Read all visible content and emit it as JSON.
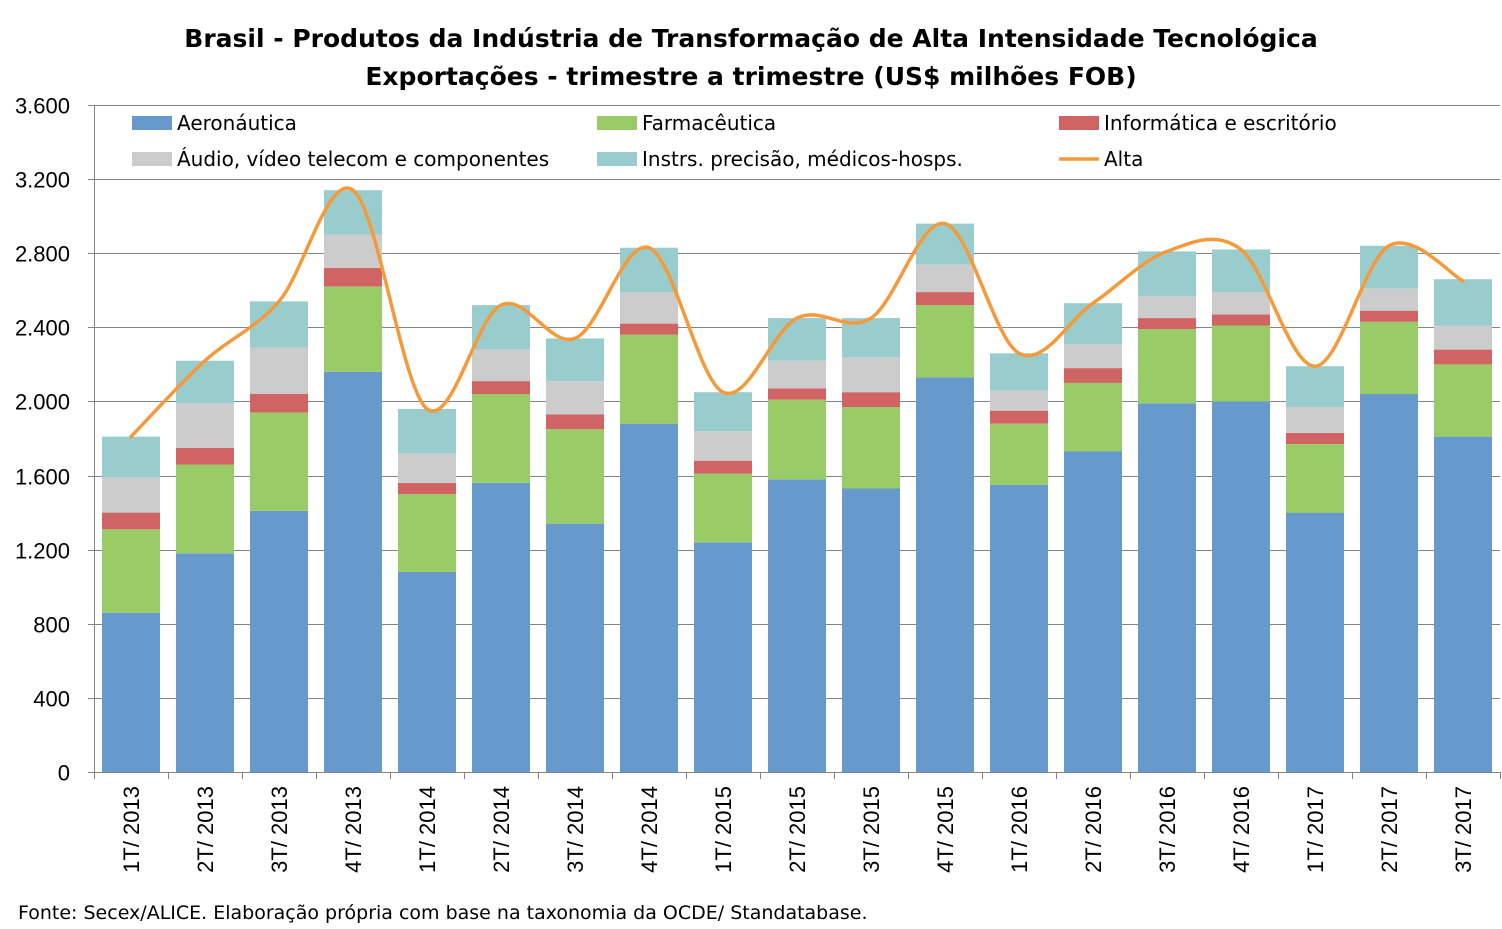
{
  "chart_data": {
    "type": "bar",
    "stacked": true,
    "title": "Brasil - Produtos da Indústria de Transformação de Alta Intensidade Tecnológica",
    "subtitle": "Exportações - trimestre a trimestre (US$ milhões FOB)",
    "ylim": [
      0,
      3600
    ],
    "yticks": [
      0,
      400,
      800,
      1200,
      1600,
      2000,
      2400,
      2800,
      3200,
      3600
    ],
    "ytick_labels": [
      "0",
      "400",
      "800",
      "1.200",
      "1.600",
      "2.000",
      "2.400",
      "2.800",
      "3.200",
      "3.600"
    ],
    "grid": true,
    "legend_position": "top",
    "categories": [
      "1T/ 2013",
      "2T/ 2013",
      "3T/ 2013",
      "4T/ 2013",
      "1T/ 2014",
      "2T/ 2014",
      "3T/ 2014",
      "4T/ 2014",
      "1T/ 2015",
      "2T/ 2015",
      "3T/ 2015",
      "4T/ 2015",
      "1T/ 2016",
      "2T/ 2016",
      "3T/ 2016",
      "4T/ 2016",
      "1T/ 2017",
      "2T/ 2017",
      "3T/ 2017"
    ],
    "series": [
      {
        "name": "Aeronáutica",
        "color": "#6699CC",
        "values": [
          860,
          1180,
          1410,
          2160,
          1080,
          1560,
          1340,
          1880,
          1240,
          1580,
          1530,
          2130,
          1550,
          1730,
          1990,
          2000,
          1400,
          2040,
          1810
        ]
      },
      {
        "name": "Farmacêutica",
        "color": "#99CC66",
        "values": [
          450,
          480,
          530,
          460,
          420,
          480,
          510,
          480,
          370,
          430,
          440,
          390,
          330,
          370,
          400,
          410,
          370,
          390,
          390
        ]
      },
      {
        "name": "Informática e escritório",
        "color": "#D06464",
        "values": [
          90,
          90,
          100,
          100,
          60,
          70,
          80,
          60,
          70,
          60,
          80,
          70,
          70,
          80,
          60,
          60,
          60,
          60,
          80
        ]
      },
      {
        "name": "Áudio, vídeo telecom e componentes",
        "color": "#CCCCCC",
        "values": [
          190,
          240,
          250,
          180,
          160,
          170,
          180,
          170,
          160,
          150,
          190,
          150,
          110,
          130,
          120,
          120,
          140,
          120,
          130
        ]
      },
      {
        "name": "Instrs. precisão, médicos-hosps.",
        "color": "#99CCCC",
        "values": [
          220,
          230,
          250,
          240,
          240,
          240,
          230,
          240,
          210,
          230,
          210,
          220,
          200,
          220,
          240,
          230,
          220,
          230,
          250
        ]
      }
    ],
    "line": {
      "name": "Alta",
      "color": "#F59A3A",
      "values": [
        1810,
        2220,
        2540,
        3140,
        1960,
        2520,
        2340,
        2830,
        2050,
        2450,
        2450,
        2960,
        2260,
        2530,
        2810,
        2820,
        2190,
        2840,
        2650
      ]
    }
  },
  "source": "Fonte: Secex/ALICE. Elaboração própria com base na taxonomia da OCDE/ Standatabase."
}
